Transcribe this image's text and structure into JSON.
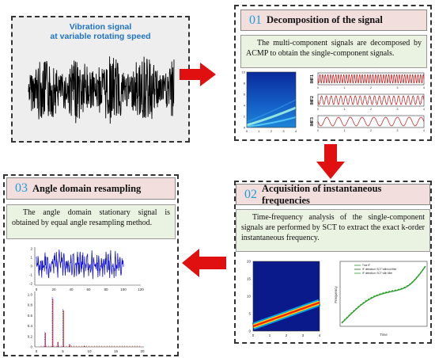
{
  "signal": {
    "title_line1": "Vibration signal",
    "title_line2": "at variable rotating speed"
  },
  "step1": {
    "number": "01",
    "title": "Decomposition of the signal",
    "description": "The multi-component signals are decomposed by ACMP to obtain the single-component signals.",
    "spectrogram_yticks": [
      "10",
      "8",
      "6",
      "4",
      "2",
      "0"
    ],
    "spectrogram_xticks": [
      "0",
      "1",
      "2",
      "3",
      "4"
    ],
    "imf_labels": [
      "IMF1",
      "IMF2",
      "IMF3"
    ],
    "imf_xticks": [
      "0",
      "1",
      "2",
      "3",
      "4"
    ]
  },
  "step2": {
    "number": "02",
    "title": "Acquisition of instantaneous frequencies",
    "description": "Time-frequency analysis of the single-component signals are performed by SCT to extract the exact k-order instantaneous frequency.",
    "tf_yticks": [
      "20",
      "15",
      "10",
      "5",
      "0"
    ],
    "tf_xticks": [
      "0",
      "1",
      "2",
      "3",
      "4"
    ],
    "if_legend": [
      "True IF",
      "IF detection: SCT with/out filter",
      "IF detection: SCT with filter"
    ],
    "if_xlabel": "Time",
    "if_ylabel": "Frequency"
  },
  "step3": {
    "number": "03",
    "title": "Angle domain resampling",
    "description": "The angle domain stationary signal is obtained by equal angle resampling method.",
    "top_xticks": [
      "0",
      "20",
      "40",
      "60",
      "80",
      "100",
      "120"
    ],
    "top_yticks": [
      "2",
      "1",
      "0",
      "-1",
      "-2"
    ],
    "bottom_xticks": [
      "0",
      "5",
      "10",
      "15",
      "20"
    ],
    "bottom_yticks": [
      "1.0",
      "0.8",
      "0.6",
      "0.4",
      "0.2",
      "0"
    ]
  },
  "colors": {
    "accent_number": "#1f9ed8",
    "title_bg": "#f3dede",
    "desc_bg": "#eaf2e1",
    "arrow": "#e01010",
    "signal_title": "#1f73c6"
  }
}
